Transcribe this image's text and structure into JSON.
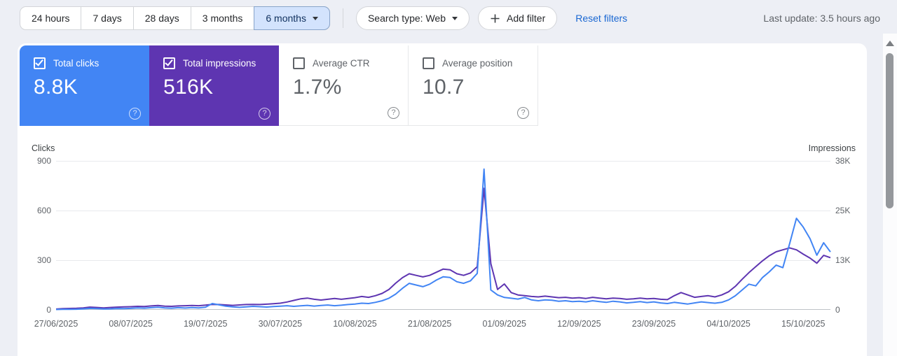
{
  "toolbar": {
    "date_ranges": [
      {
        "label": "24 hours",
        "selected": false
      },
      {
        "label": "7 days",
        "selected": false
      },
      {
        "label": "28 days",
        "selected": false
      },
      {
        "label": "3 months",
        "selected": false
      },
      {
        "label": "6 months",
        "selected": true
      }
    ],
    "search_type_label": "Search type: Web",
    "add_filter_label": "Add filter",
    "reset_filters_label": "Reset filters",
    "last_update": "Last update: 3.5 hours ago"
  },
  "metrics": [
    {
      "label": "Total clicks",
      "value": "8.8K",
      "checked": true,
      "bg": "#4285f4",
      "fg": "#ffffff"
    },
    {
      "label": "Total impressions",
      "value": "516K",
      "checked": true,
      "bg": "#5e35b1",
      "fg": "#ffffff"
    },
    {
      "label": "Average CTR",
      "value": "1.7%",
      "checked": false,
      "bg": "#ffffff",
      "fg": "#5f6368"
    },
    {
      "label": "Average position",
      "value": "10.7",
      "checked": false,
      "bg": "#ffffff",
      "fg": "#5f6368"
    }
  ],
  "chart_data": {
    "type": "line",
    "x_unit": "day",
    "x_range": [
      "27/06/2025",
      "19/10/2025"
    ],
    "x_tick_labels": [
      "27/06/2025",
      "08/07/2025",
      "19/07/2025",
      "30/07/2025",
      "10/08/2025",
      "21/08/2025",
      "01/09/2025",
      "12/09/2025",
      "23/09/2025",
      "04/10/2025",
      "15/10/2025"
    ],
    "x_tick_indices": [
      0,
      11,
      22,
      33,
      44,
      55,
      66,
      77,
      88,
      99,
      110
    ],
    "left_axis": {
      "title": "Clicks",
      "ticks": [
        0,
        300,
        600,
        900
      ],
      "max": 900
    },
    "right_axis": {
      "title": "Impressions",
      "tick_labels": [
        "0",
        "13K",
        "25K",
        "38K"
      ],
      "max": 38000
    },
    "grid": true,
    "series": [
      {
        "name": "Clicks",
        "axis": "left",
        "color": "#4285f4",
        "values": [
          2,
          3,
          3,
          4,
          6,
          9,
          7,
          5,
          6,
          8,
          7,
          9,
          12,
          10,
          13,
          16,
          12,
          10,
          13,
          11,
          14,
          12,
          16,
          38,
          30,
          22,
          18,
          15,
          18,
          21,
          19,
          17,
          20,
          22,
          25,
          21,
          24,
          27,
          23,
          26,
          29,
          25,
          28,
          32,
          35,
          40,
          38,
          45,
          55,
          70,
          95,
          130,
          160,
          150,
          140,
          155,
          180,
          200,
          195,
          170,
          160,
          175,
          220,
          850,
          120,
          90,
          75,
          70,
          65,
          75,
          60,
          55,
          60,
          58,
          52,
          55,
          50,
          52,
          48,
          55,
          50,
          45,
          52,
          48,
          42,
          45,
          50,
          44,
          48,
          42,
          38,
          45,
          40,
          35,
          42,
          48,
          44,
          40,
          45,
          60,
          85,
          120,
          155,
          145,
          195,
          230,
          270,
          255,
          400,
          553,
          500,
          430,
          330,
          405,
          350
        ]
      },
      {
        "name": "Impressions",
        "axis": "right",
        "color": "#5e35b1",
        "values": [
          200,
          300,
          350,
          400,
          500,
          700,
          600,
          500,
          600,
          700,
          750,
          800,
          900,
          850,
          1000,
          1100,
          950,
          900,
          1000,
          1050,
          1100,
          1050,
          1200,
          1400,
          1350,
          1250,
          1150,
          1250,
          1350,
          1400,
          1350,
          1450,
          1550,
          1700,
          2000,
          2400,
          2800,
          3000,
          2700,
          2500,
          2700,
          2900,
          2700,
          2900,
          3100,
          3400,
          3200,
          3600,
          4200,
          5200,
          6800,
          8200,
          9200,
          8800,
          8400,
          8800,
          9600,
          10400,
          10200,
          9200,
          8800,
          9400,
          11000,
          31000,
          11800,
          5200,
          6600,
          4400,
          3800,
          3600,
          3400,
          3300,
          3500,
          3300,
          3100,
          3200,
          3000,
          3100,
          2900,
          3200,
          3000,
          2800,
          3000,
          2900,
          2700,
          2800,
          3000,
          2800,
          2900,
          2700,
          2600,
          3600,
          4400,
          3800,
          3200,
          3400,
          3600,
          3300,
          3800,
          4600,
          6000,
          7800,
          9500,
          11000,
          12500,
          13800,
          14800,
          15300,
          15800,
          15300,
          14200,
          13200,
          11900,
          13900,
          13300
        ]
      }
    ]
  }
}
